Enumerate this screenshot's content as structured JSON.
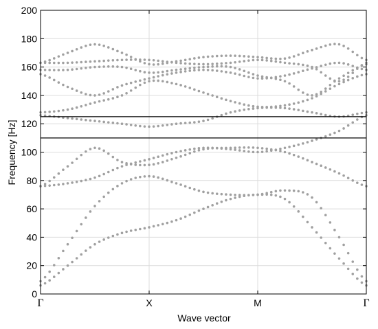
{
  "chart_data": {
    "type": "scatter",
    "title": "",
    "xlabel": "Wave vector",
    "ylabel": "Frequency [Hz]",
    "ylim": [
      0,
      200
    ],
    "yticks": [
      0,
      20,
      40,
      60,
      80,
      100,
      120,
      140,
      160,
      180,
      200
    ],
    "xticks": [
      {
        "label": "Γ",
        "k": 0
      },
      {
        "label": "X",
        "k": 1
      },
      {
        "label": "M",
        "k": 2
      },
      {
        "label": "Γ",
        "k": 3
      }
    ],
    "grid": true,
    "band_gap": [
      110,
      125
    ],
    "marker_color": "#a0a0a0",
    "line_color": "#000000",
    "bands": [
      [
        [
          0.0,
          6
        ],
        [
          0.25,
          20
        ],
        [
          0.5,
          35
        ],
        [
          0.75,
          43
        ],
        [
          1.0,
          47
        ],
        [
          1.25,
          52
        ],
        [
          1.5,
          60
        ],
        [
          1.75,
          67
        ],
        [
          2.0,
          70
        ],
        [
          2.25,
          67
        ],
        [
          2.5,
          47
        ],
        [
          2.75,
          25
        ],
        [
          3.0,
          6
        ]
      ],
      [
        [
          0.0,
          9
        ],
        [
          0.25,
          35
        ],
        [
          0.5,
          62
        ],
        [
          0.75,
          78
        ],
        [
          1.0,
          83
        ],
        [
          1.25,
          78
        ],
        [
          1.5,
          72
        ],
        [
          1.75,
          70
        ],
        [
          2.0,
          70
        ],
        [
          2.25,
          73
        ],
        [
          2.5,
          68
        ],
        [
          2.75,
          40
        ],
        [
          3.0,
          9
        ]
      ],
      [
        [
          0.0,
          76
        ],
        [
          0.25,
          78
        ],
        [
          0.5,
          82
        ],
        [
          0.75,
          90
        ],
        [
          1.0,
          95
        ],
        [
          1.25,
          100
        ],
        [
          1.5,
          103
        ],
        [
          1.75,
          102
        ],
        [
          2.0,
          100
        ],
        [
          2.25,
          103
        ],
        [
          2.5,
          108
        ],
        [
          2.75,
          115
        ],
        [
          3.0,
          126
        ]
      ],
      [
        [
          0.0,
          76
        ],
        [
          0.25,
          90
        ],
        [
          0.5,
          103
        ],
        [
          0.75,
          93
        ],
        [
          1.0,
          91
        ],
        [
          1.25,
          96
        ],
        [
          1.5,
          102
        ],
        [
          1.75,
          103
        ],
        [
          2.0,
          103
        ],
        [
          2.25,
          100
        ],
        [
          2.5,
          93
        ],
        [
          2.75,
          85
        ],
        [
          3.0,
          76
        ]
      ],
      [
        [
          0.0,
          126
        ],
        [
          0.25,
          124
        ],
        [
          0.5,
          122
        ],
        [
          0.75,
          120
        ],
        [
          1.0,
          118
        ],
        [
          1.25,
          120
        ],
        [
          1.5,
          122
        ],
        [
          1.75,
          128
        ],
        [
          2.0,
          131
        ],
        [
          2.25,
          131
        ],
        [
          2.5,
          128
        ],
        [
          2.75,
          125
        ],
        [
          3.0,
          128
        ]
      ],
      [
        [
          0.0,
          128
        ],
        [
          0.25,
          130
        ],
        [
          0.5,
          135
        ],
        [
          0.75,
          140
        ],
        [
          1.0,
          150
        ],
        [
          1.25,
          148
        ],
        [
          1.5,
          142
        ],
        [
          1.75,
          136
        ],
        [
          2.0,
          132
        ],
        [
          2.25,
          133
        ],
        [
          2.5,
          138
        ],
        [
          2.75,
          148
        ],
        [
          3.0,
          155
        ]
      ],
      [
        [
          0.0,
          155
        ],
        [
          0.25,
          146
        ],
        [
          0.5,
          140
        ],
        [
          0.75,
          147
        ],
        [
          1.0,
          152
        ],
        [
          1.25,
          156
        ],
        [
          1.5,
          158
        ],
        [
          1.75,
          156
        ],
        [
          2.0,
          152
        ],
        [
          2.25,
          154
        ],
        [
          2.5,
          159
        ],
        [
          2.75,
          163
        ],
        [
          3.0,
          158
        ]
      ],
      [
        [
          0.0,
          158
        ],
        [
          0.25,
          158
        ],
        [
          0.5,
          160
        ],
        [
          0.75,
          160
        ],
        [
          1.0,
          156
        ],
        [
          1.25,
          158
        ],
        [
          1.5,
          160
        ],
        [
          1.75,
          160
        ],
        [
          2.0,
          154
        ],
        [
          2.25,
          150
        ],
        [
          2.5,
          140
        ],
        [
          2.75,
          152
        ],
        [
          3.0,
          162
        ]
      ],
      [
        [
          0.0,
          163
        ],
        [
          0.25,
          163
        ],
        [
          0.5,
          164
        ],
        [
          0.75,
          165
        ],
        [
          1.0,
          165
        ],
        [
          1.25,
          163
        ],
        [
          1.5,
          162
        ],
        [
          1.75,
          163
        ],
        [
          2.0,
          165
        ],
        [
          2.25,
          163
        ],
        [
          2.5,
          160
        ],
        [
          2.75,
          150
        ],
        [
          3.0,
          163
        ]
      ],
      [
        [
          0.0,
          163
        ],
        [
          0.25,
          170
        ],
        [
          0.5,
          176
        ],
        [
          0.75,
          170
        ],
        [
          1.0,
          162
        ],
        [
          1.25,
          164
        ],
        [
          1.5,
          167
        ],
        [
          1.75,
          168
        ],
        [
          2.0,
          167
        ],
        [
          2.25,
          166
        ],
        [
          2.5,
          172
        ],
        [
          2.75,
          176
        ],
        [
          3.0,
          165
        ]
      ]
    ]
  }
}
